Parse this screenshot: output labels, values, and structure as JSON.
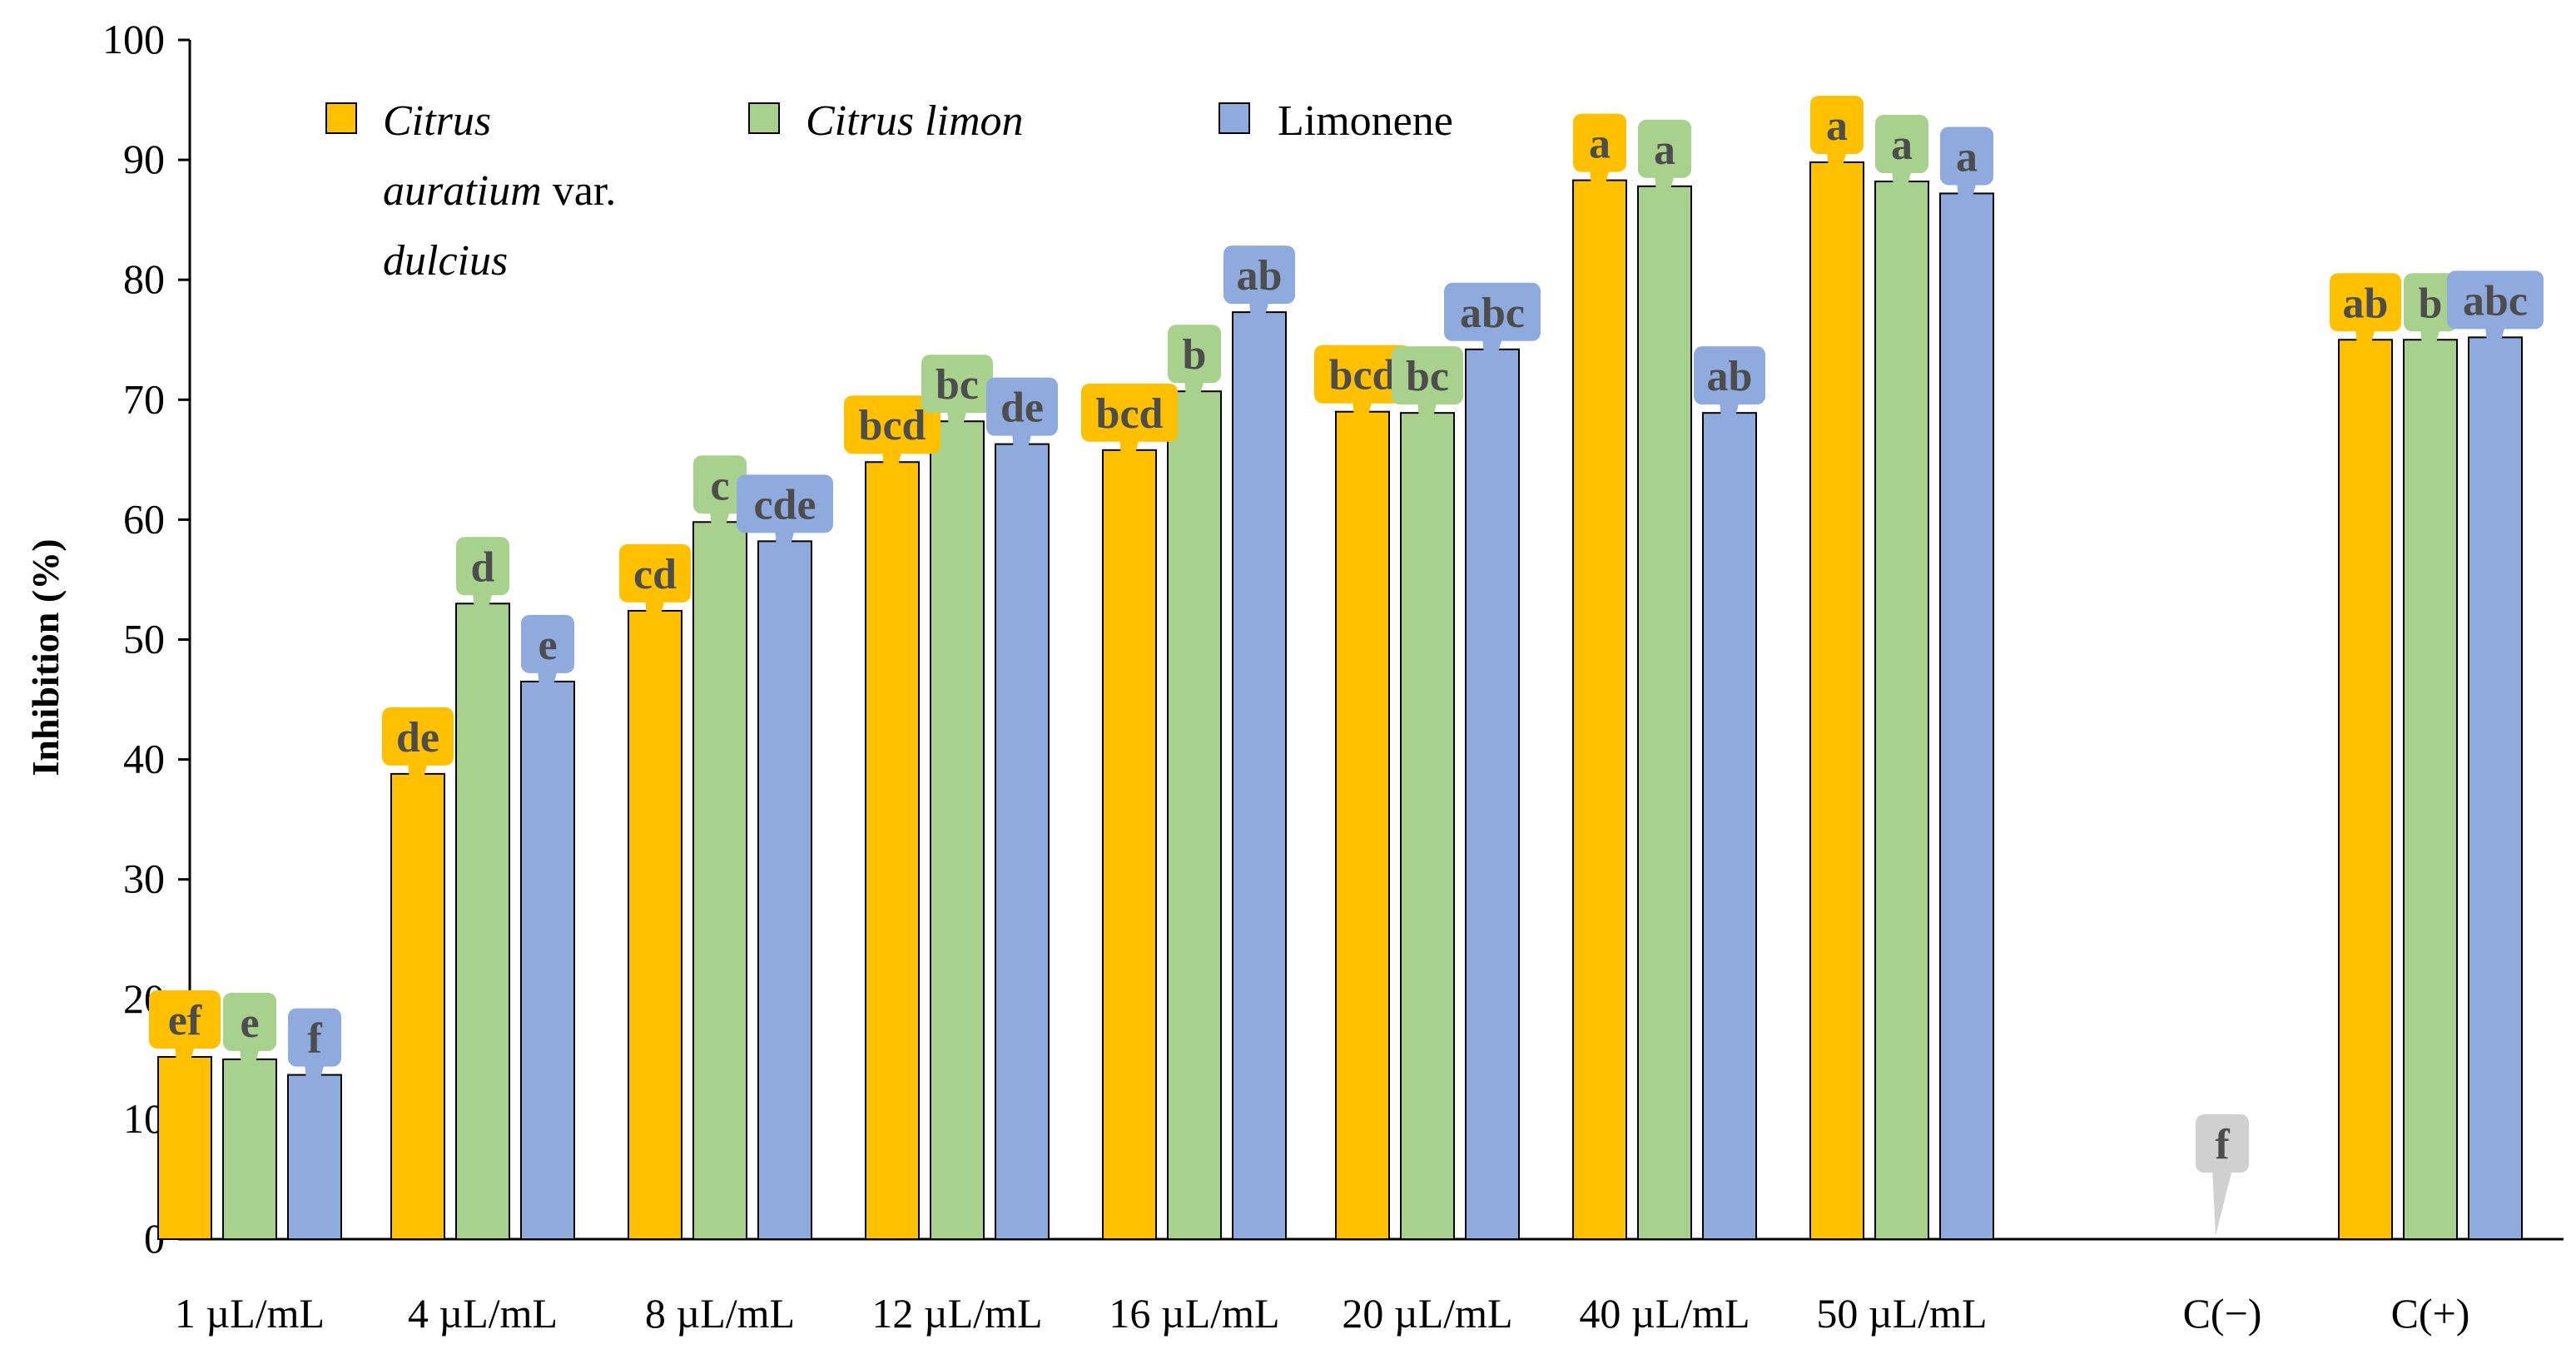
{
  "chart_data": {
    "type": "bar",
    "title": "",
    "xlabel": "",
    "ylabel": "Inhibition (%)",
    "ylim": [
      0,
      100
    ],
    "yticks": [
      0,
      10,
      20,
      30,
      40,
      50,
      60,
      70,
      80,
      90,
      100
    ],
    "grid": false,
    "legend_position": "top-left",
    "categories": [
      "1 µL/mL",
      "4 µL/mL",
      "8 µL/mL",
      "12 µL/mL",
      "16 µL/mL",
      "20 µL/mL",
      "40 µL/mL",
      "50 µL/mL",
      "C(−)",
      "C(+)"
    ],
    "series": [
      {
        "name_parts": [
          {
            "text": "Citrus",
            "italic": true
          },
          {
            "text": "auratium",
            "italic": true
          },
          {
            "text": " var.",
            "italic": false
          },
          {
            "text": "dulcius",
            "italic": true
          }
        ],
        "color": "#FFC000",
        "label_color": "#4d4d4d",
        "values": [
          15.2,
          38.8,
          52.4,
          64.8,
          65.8,
          69.0,
          88.3,
          89.8,
          null,
          75.0
        ],
        "letters": [
          "ef",
          "de",
          "cd",
          "bcd",
          "bcd",
          "bcd",
          "a",
          "a",
          null,
          "ab"
        ]
      },
      {
        "name_parts": [
          {
            "text": "Citrus limon",
            "italic": true
          }
        ],
        "color": "#A9D18E",
        "label_color": "#4d4d4d",
        "values": [
          15.0,
          53.0,
          59.8,
          68.2,
          70.7,
          68.9,
          87.8,
          88.2,
          null,
          75.0
        ],
        "letters": [
          "e",
          "d",
          "c",
          "bc",
          "b",
          "bc",
          "a",
          "a",
          null,
          "b"
        ]
      },
      {
        "name_parts": [
          {
            "text": "Limonene",
            "italic": false
          }
        ],
        "color": "#8FAADC",
        "label_color": "#4d4d4d",
        "values": [
          13.7,
          46.5,
          58.2,
          66.3,
          77.3,
          74.2,
          68.9,
          87.2,
          null,
          75.2
        ],
        "letters": [
          "f",
          "e",
          "cde",
          "de",
          "ab",
          "abc",
          "ab",
          "a",
          null,
          "abc"
        ]
      }
    ],
    "extra_labels": [
      {
        "category": "C(−)",
        "value": 0,
        "letter": "f",
        "color": "#d0d0d0"
      }
    ]
  }
}
